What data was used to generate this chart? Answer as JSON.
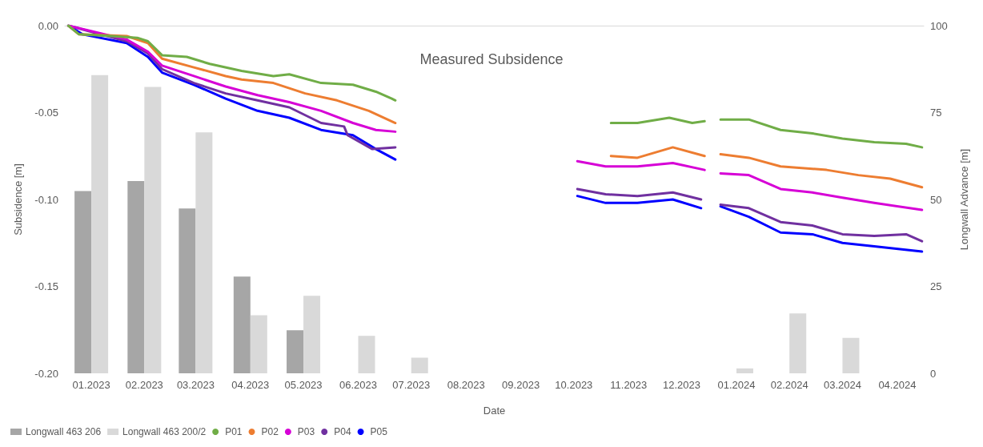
{
  "chart_data": {
    "type": "bar",
    "title": "Measured Subsidence",
    "xlabel": "Date",
    "ylabel": "Subsidence [m]",
    "y2label": "Longwall Advance [m]",
    "xlim": [
      "2023-01-01",
      "2024-05-01"
    ],
    "xticks": [
      {
        "value": "2023-01-16",
        "label": "01.2023"
      },
      {
        "value": "2023-02-15",
        "label": "02.2023"
      },
      {
        "value": "2023-03-16",
        "label": "03.2023"
      },
      {
        "value": "2023-04-16",
        "label": "04.2023"
      },
      {
        "value": "2023-05-16",
        "label": "05.2023"
      },
      {
        "value": "2023-06-16",
        "label": "06.2023"
      },
      {
        "value": "2023-07-16",
        "label": "07.2023"
      },
      {
        "value": "2023-08-16",
        "label": "08.2023"
      },
      {
        "value": "2023-09-16",
        "label": "09.2023"
      },
      {
        "value": "2023-10-16",
        "label": "10.2023"
      },
      {
        "value": "2023-11-16",
        "label": "11.2023"
      },
      {
        "value": "2023-12-16",
        "label": "12.2023"
      },
      {
        "value": "2024-01-16",
        "label": "01.2024"
      },
      {
        "value": "2024-02-15",
        "label": "02.2024"
      },
      {
        "value": "2024-03-16",
        "label": "03.2024"
      },
      {
        "value": "2024-04-16",
        "label": "04.2024"
      }
    ],
    "ylim": [
      -0.2,
      0
    ],
    "yticks": [
      {
        "value": -0.2,
        "label": "-0.20"
      },
      {
        "value": -0.15,
        "label": "-0.15"
      },
      {
        "value": -0.1,
        "label": "-0.10"
      },
      {
        "value": -0.05,
        "label": "-0.05"
      },
      {
        "value": 0,
        "label": "0.00"
      }
    ],
    "y2lim": [
      0,
      100
    ],
    "y2ticks": [
      0,
      25,
      50,
      75,
      100
    ],
    "grid": false,
    "legend": "bottom left",
    "line_style": "solid",
    "series": [
      {
        "name": "Longwall 463 206",
        "axis": "y2",
        "color": "#a6a6a6",
        "x": [
          "2023-01-16",
          "2023-02-15",
          "2023-03-16",
          "2023-04-16",
          "2023-05-16"
        ],
        "values": [
          52.4,
          55.3,
          47.4,
          27.8,
          12.4
        ]
      },
      {
        "name": "Longwall 463 200/2",
        "axis": "y2",
        "color": "#d9d9d9",
        "x": [
          "2023-01-16",
          "2023-02-15",
          "2023-03-16",
          "2023-04-16",
          "2023-05-16",
          "2023-06-16",
          "2023-07-16",
          "2024-01-16",
          "2024-02-15",
          "2024-03-16"
        ],
        "values": [
          85.8,
          82.4,
          69.3,
          16.7,
          22.3,
          10.8,
          4.5,
          1.4,
          17.2,
          10.2
        ]
      },
      {
        "name": "P01",
        "type": "line",
        "color": "#70ad47",
        "x": [
          "2023-01-03",
          "2023-01-09",
          "2023-01-27",
          "2023-02-11",
          "2023-02-17",
          "2023-02-25",
          "2023-03-11",
          "2023-03-24",
          "2023-04-11",
          "2023-04-29",
          "2023-05-08",
          "2023-05-26",
          "2023-06-13",
          "2023-06-26",
          "2023-07-05",
          "2023-07-07",
          "2023-08-01",
          "2023-11-06",
          "2023-11-21",
          "2023-12-09",
          "2023-12-22",
          "2023-12-29",
          "2024-01-01",
          "2024-01-07",
          "2024-01-23",
          "2024-02-10",
          "2024-02-28",
          "2024-03-16",
          "2024-04-03",
          "2024-04-21",
          "2024-04-30"
        ],
        "values": [
          0,
          -0.005,
          -0.006,
          -0.007,
          -0.009,
          -0.017,
          -0.018,
          -0.022,
          -0.026,
          -0.029,
          -0.028,
          -0.033,
          -0.034,
          -0.038,
          -0.042,
          -0.043,
          null,
          -0.056,
          -0.056,
          -0.053,
          -0.056,
          -0.055,
          null,
          -0.054,
          -0.054,
          -0.06,
          -0.062,
          -0.065,
          -0.067,
          -0.068,
          -0.07
        ]
      },
      {
        "name": "P02",
        "type": "line",
        "color": "#ed7d31",
        "x": [
          "2023-01-03",
          "2023-01-09",
          "2023-02-05",
          "2023-02-17",
          "2023-02-25",
          "2023-03-15",
          "2023-04-02",
          "2023-04-11",
          "2023-04-29",
          "2023-05-17",
          "2023-06-04",
          "2023-06-22",
          "2023-07-07",
          "2023-08-01",
          "2023-11-06",
          "2023-11-21",
          "2023-12-11",
          "2023-12-29",
          "2024-01-01",
          "2024-01-07",
          "2024-01-23",
          "2024-02-10",
          "2024-03-07",
          "2024-03-25",
          "2024-04-12",
          "2024-04-30"
        ],
        "values": [
          0,
          -0.005,
          -0.006,
          -0.01,
          -0.019,
          -0.024,
          -0.029,
          -0.031,
          -0.033,
          -0.039,
          -0.043,
          -0.049,
          -0.056,
          null,
          -0.075,
          -0.076,
          -0.07,
          -0.075,
          null,
          -0.074,
          -0.076,
          -0.081,
          -0.083,
          -0.086,
          -0.088,
          -0.093
        ]
      },
      {
        "name": "P03",
        "type": "line",
        "color": "#d600d6",
        "x": [
          "2023-01-03",
          "2023-02-05",
          "2023-02-17",
          "2023-02-25",
          "2023-03-15",
          "2023-04-02",
          "2023-04-20",
          "2023-05-08",
          "2023-05-26",
          "2023-06-13",
          "2023-06-26",
          "2023-07-07",
          "2023-08-01",
          "2023-10-18",
          "2023-11-03",
          "2023-11-21",
          "2023-12-11",
          "2023-12-29",
          "2024-01-01",
          "2024-01-07",
          "2024-01-23",
          "2024-02-10",
          "2024-02-28",
          "2024-03-16",
          "2024-04-03",
          "2024-04-30"
        ],
        "values": [
          0,
          -0.008,
          -0.015,
          -0.023,
          -0.029,
          -0.035,
          -0.04,
          -0.044,
          -0.049,
          -0.056,
          -0.06,
          -0.061,
          null,
          -0.078,
          -0.081,
          -0.081,
          -0.079,
          -0.083,
          null,
          -0.085,
          -0.086,
          -0.094,
          -0.096,
          -0.099,
          -0.102,
          -0.106
        ]
      },
      {
        "name": "P04",
        "type": "line",
        "color": "#7030a0",
        "x": [
          "2023-01-03",
          "2023-02-05",
          "2023-02-17",
          "2023-02-25",
          "2023-03-15",
          "2023-04-02",
          "2023-04-20",
          "2023-05-08",
          "2023-05-26",
          "2023-06-08",
          "2023-06-10",
          "2023-06-24",
          "2023-07-07",
          "2023-08-01",
          "2023-10-18",
          "2023-11-03",
          "2023-11-21",
          "2023-12-11",
          "2023-12-27",
          "2024-01-01",
          "2024-01-07",
          "2024-01-23",
          "2024-02-10",
          "2024-02-28",
          "2024-03-16",
          "2024-04-03",
          "2024-04-21",
          "2024-04-30"
        ],
        "values": [
          0,
          -0.009,
          -0.016,
          -0.025,
          -0.033,
          -0.039,
          -0.043,
          -0.047,
          -0.056,
          -0.058,
          -0.063,
          -0.071,
          -0.07,
          null,
          -0.094,
          -0.097,
          -0.098,
          -0.096,
          -0.1,
          null,
          -0.103,
          -0.105,
          -0.113,
          -0.115,
          -0.12,
          -0.121,
          -0.12,
          -0.124
        ]
      },
      {
        "name": "P05",
        "type": "line",
        "color": "#0000ff",
        "x": [
          "2023-01-03",
          "2023-01-11",
          "2023-02-05",
          "2023-02-17",
          "2023-02-25",
          "2023-03-15",
          "2023-04-02",
          "2023-04-20",
          "2023-05-08",
          "2023-05-26",
          "2023-06-13",
          "2023-06-26",
          "2023-07-07",
          "2023-08-01",
          "2023-10-18",
          "2023-11-03",
          "2023-11-21",
          "2023-12-11",
          "2023-12-27",
          "2024-01-01",
          "2024-01-07",
          "2024-01-23",
          "2024-02-10",
          "2024-02-28",
          "2024-03-16",
          "2024-04-03",
          "2024-04-30"
        ],
        "values": [
          0,
          -0.005,
          -0.01,
          -0.018,
          -0.027,
          -0.034,
          -0.042,
          -0.049,
          -0.053,
          -0.06,
          -0.063,
          -0.071,
          -0.077,
          null,
          -0.098,
          -0.102,
          -0.102,
          -0.1,
          -0.105,
          null,
          -0.104,
          -0.11,
          -0.119,
          -0.12,
          -0.125,
          -0.127,
          -0.13
        ]
      }
    ]
  }
}
